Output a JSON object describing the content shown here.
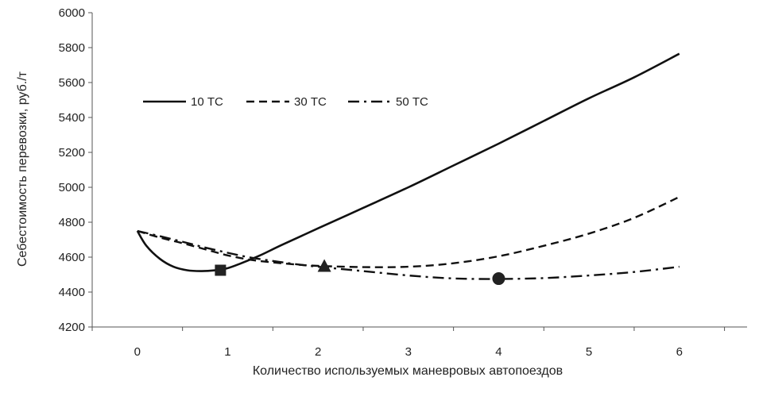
{
  "chart_data": {
    "type": "line",
    "xlabel": "Количество используемых маневровых автопоездов",
    "ylabel": "Себестоимость перевозки, руб./т",
    "xlim": [
      -0.5,
      6.75
    ],
    "ylim": [
      4200,
      6000
    ],
    "x_ticks": [
      "0",
      "1",
      "2",
      "3",
      "4",
      "5",
      "6"
    ],
    "y_ticks": [
      "4200",
      "4400",
      "4600",
      "4800",
      "5000",
      "5200",
      "5400",
      "5600",
      "5800",
      "6000"
    ],
    "grid": false,
    "legend_position": "top-left",
    "series": [
      {
        "name": "10 ТС",
        "style": "solid",
        "color": "#111111",
        "x": [
          0,
          0.1,
          0.25,
          0.4,
          0.55,
          0.7,
          0.85,
          1.0,
          1.15,
          1.35,
          1.6,
          2.0,
          2.5,
          3.0,
          3.5,
          4.0,
          4.5,
          5.0,
          5.5,
          6.0
        ],
        "y": [
          4750,
          4665,
          4590,
          4545,
          4525,
          4520,
          4524,
          4537,
          4565,
          4608,
          4670,
          4765,
          4882,
          5000,
          5125,
          5250,
          5380,
          5510,
          5630,
          5765
        ],
        "marker": {
          "shape": "square",
          "x": 0.92,
          "y": 4525
        }
      },
      {
        "name": "30 ТС",
        "style": "dashed",
        "color": "#111111",
        "x": [
          0,
          0.25,
          0.5,
          0.75,
          1.0,
          1.25,
          1.5,
          1.75,
          2.0,
          2.5,
          3.0,
          3.5,
          4.0,
          4.5,
          5.0,
          5.5,
          6.0
        ],
        "y": [
          4750,
          4712,
          4680,
          4645,
          4610,
          4585,
          4570,
          4558,
          4550,
          4543,
          4545,
          4565,
          4605,
          4665,
          4735,
          4825,
          4945
        ],
        "marker": {
          "shape": "triangle",
          "x": 2.07,
          "y": 4548
        }
      },
      {
        "name": "50 ТС",
        "style": "dashdot",
        "color": "#111111",
        "x": [
          0,
          0.25,
          0.5,
          0.75,
          1.0,
          1.25,
          1.5,
          1.75,
          2.0,
          2.5,
          3.0,
          3.5,
          4.0,
          4.5,
          5.0,
          5.5,
          6.0
        ],
        "y": [
          4750,
          4720,
          4688,
          4655,
          4625,
          4598,
          4578,
          4560,
          4545,
          4520,
          4495,
          4478,
          4475,
          4480,
          4495,
          4515,
          4545
        ],
        "marker": {
          "shape": "circle",
          "x": 4.0,
          "y": 4477
        }
      }
    ]
  }
}
